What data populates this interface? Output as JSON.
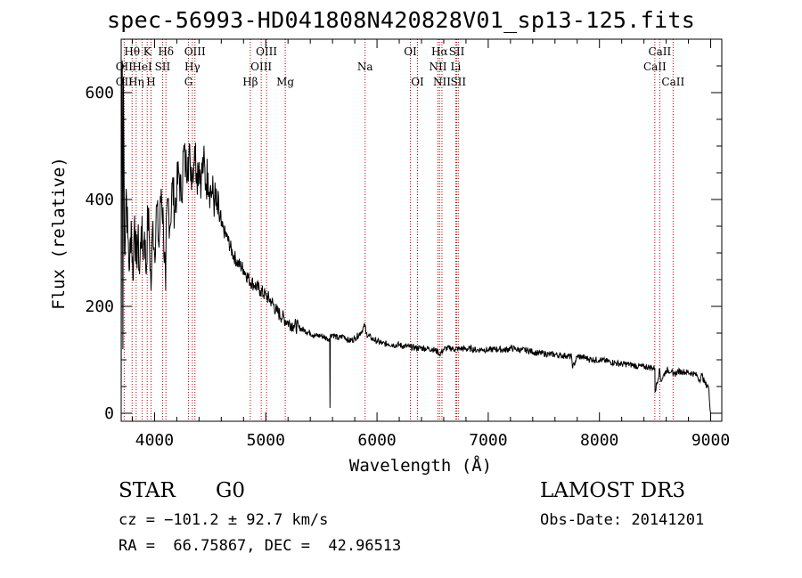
{
  "header": {
    "title": "spec-56993-HD041808N420828V01_sp13-125.fits"
  },
  "chart_data": {
    "type": "line",
    "title": "spec-56993-HD041808N420828V01_sp13-125.fits",
    "xlabel": "Wavelength (Å)",
    "ylabel": "Flux (relative)",
    "xlim": [
      3700,
      9100
    ],
    "ylim": [
      -15,
      700
    ],
    "xticks": [
      4000,
      5000,
      6000,
      7000,
      8000,
      9000
    ],
    "xtick_labels": [
      "4000",
      "5000",
      "6000",
      "7000",
      "8000",
      "9000"
    ],
    "yticks": [
      0,
      200,
      400,
      600
    ],
    "ytick_labels": [
      "0",
      "200",
      "400",
      "600"
    ],
    "series": [
      {
        "name": "spectrum",
        "x": [
          3700,
          3705,
          3710,
          3715,
          3720,
          3730,
          3745,
          3760,
          3775,
          3790,
          3805,
          3820,
          3835,
          3850,
          3865,
          3880,
          3895,
          3910,
          3925,
          3940,
          3955,
          3968,
          3985,
          4000,
          4020,
          4040,
          4060,
          4080,
          4100,
          4102,
          4120,
          4140,
          4160,
          4180,
          4200,
          4220,
          4240,
          4260,
          4280,
          4300,
          4320,
          4340,
          4360,
          4380,
          4400,
          4420,
          4440,
          4460,
          4480,
          4500,
          4520,
          4540,
          4560,
          4580,
          4600,
          4650,
          4700,
          4750,
          4800,
          4850,
          4900,
          4950,
          5000,
          5050,
          5100,
          5150,
          5200,
          5250,
          5300,
          5350,
          5400,
          5450,
          5500,
          5550,
          5575,
          5577,
          5580,
          5600,
          5650,
          5700,
          5750,
          5800,
          5850,
          5893,
          5900,
          5950,
          6000,
          6050,
          6100,
          6150,
          6200,
          6250,
          6300,
          6350,
          6400,
          6450,
          6500,
          6550,
          6563,
          6600,
          6650,
          6700,
          6750,
          6800,
          6850,
          6900,
          6950,
          7000,
          7050,
          7100,
          7150,
          7200,
          7250,
          7300,
          7350,
          7400,
          7450,
          7500,
          7550,
          7600,
          7650,
          7700,
          7750,
          7760,
          7800,
          7850,
          7900,
          7950,
          8000,
          8050,
          8100,
          8150,
          8200,
          8250,
          8300,
          8350,
          8400,
          8450,
          8498,
          8500,
          8542,
          8550,
          8600,
          8650,
          8662,
          8700,
          8750,
          8800,
          8850,
          8880,
          8900,
          8920,
          8950,
          8980,
          9000
        ],
        "values": [
          20,
          610,
          660,
          120,
          630,
          300,
          420,
          330,
          270,
          360,
          250,
          370,
          280,
          330,
          260,
          350,
          300,
          340,
          260,
          380,
          320,
          230,
          360,
          300,
          390,
          310,
          420,
          350,
          230,
          300,
          400,
          350,
          430,
          380,
          420,
          450,
          400,
          490,
          460,
          480,
          470,
          450,
          500,
          450,
          470,
          440,
          470,
          430,
          450,
          420,
          410,
          400,
          380,
          370,
          350,
          330,
          300,
          280,
          270,
          250,
          240,
          230,
          220,
          210,
          190,
          180,
          170,
          165,
          160,
          155,
          150,
          145,
          145,
          140,
          140,
          10,
          145,
          148,
          140,
          145,
          135,
          140,
          150,
          165,
          150,
          140,
          135,
          130,
          130,
          128,
          128,
          125,
          124,
          122,
          122,
          121,
          120,
          115,
          110,
          120,
          122,
          120,
          121,
          120,
          121,
          118,
          120,
          118,
          120,
          120,
          118,
          122,
          120,
          118,
          118,
          115,
          112,
          112,
          110,
          110,
          108,
          108,
          105,
          85,
          106,
          105,
          102,
          100,
          100,
          98,
          96,
          94,
          92,
          92,
          90,
          88,
          87,
          86,
          84,
          40,
          82,
          60,
          80,
          80,
          70,
          78,
          78,
          76,
          74,
          70,
          62,
          72,
          55,
          50,
          0
        ]
      }
    ],
    "line_markers": [
      {
        "label": "Hθ",
        "wavelength": 3798,
        "row": 0
      },
      {
        "label": "OII",
        "wavelength": 3727,
        "row": 1
      },
      {
        "label": "OII",
        "wavelength": 3727,
        "row": 2
      },
      {
        "label": "K",
        "wavelength": 3934,
        "row": 0
      },
      {
        "label": "HeI",
        "wavelength": 3889,
        "row": 1
      },
      {
        "label": "Hη",
        "wavelength": 3835,
        "row": 2
      },
      {
        "label": "H",
        "wavelength": 3968,
        "row": 2
      },
      {
        "label": "Hδ",
        "wavelength": 4102,
        "row": 0
      },
      {
        "label": "SII",
        "wavelength": 4072,
        "row": 1
      },
      {
        "label": "OIII",
        "wavelength": 4363,
        "row": 0
      },
      {
        "label": "Hγ",
        "wavelength": 4340,
        "row": 1
      },
      {
        "label": "G",
        "wavelength": 4305,
        "row": 2
      },
      {
        "label": "OIII",
        "wavelength": 5007,
        "row": 0
      },
      {
        "label": "OIII",
        "wavelength": 4959,
        "row": 1
      },
      {
        "label": "Hβ",
        "wavelength": 4861,
        "row": 2
      },
      {
        "label": "Mg",
        "wavelength": 5175,
        "row": 2
      },
      {
        "label": "Na",
        "wavelength": 5893,
        "row": 1
      },
      {
        "label": "OI",
        "wavelength": 6300,
        "row": 0
      },
      {
        "label": "OI",
        "wavelength": 6364,
        "row": 2
      },
      {
        "label": "Hα",
        "wavelength": 6563,
        "row": 0
      },
      {
        "label": "SII",
        "wavelength": 6717,
        "row": 0
      },
      {
        "label": "NII",
        "wavelength": 6548,
        "row": 1
      },
      {
        "label": "Li",
        "wavelength": 6708,
        "row": 1
      },
      {
        "label": "NII",
        "wavelength": 6584,
        "row": 2
      },
      {
        "label": "SII",
        "wavelength": 6731,
        "row": 2
      },
      {
        "label": "CaII",
        "wavelength": 8542,
        "row": 0
      },
      {
        "label": "CaII",
        "wavelength": 8498,
        "row": 1
      },
      {
        "label": "CaII",
        "wavelength": 8662,
        "row": 2
      }
    ]
  },
  "info": {
    "class": "STAR",
    "subclass": "G0",
    "survey": "LAMOST DR3",
    "redshift": "cz = −101.2 ± 92.7 km/s",
    "obs_date": "Obs-Date: 20141201",
    "coords": "RA =  66.75867, DEC =  42.96513"
  }
}
